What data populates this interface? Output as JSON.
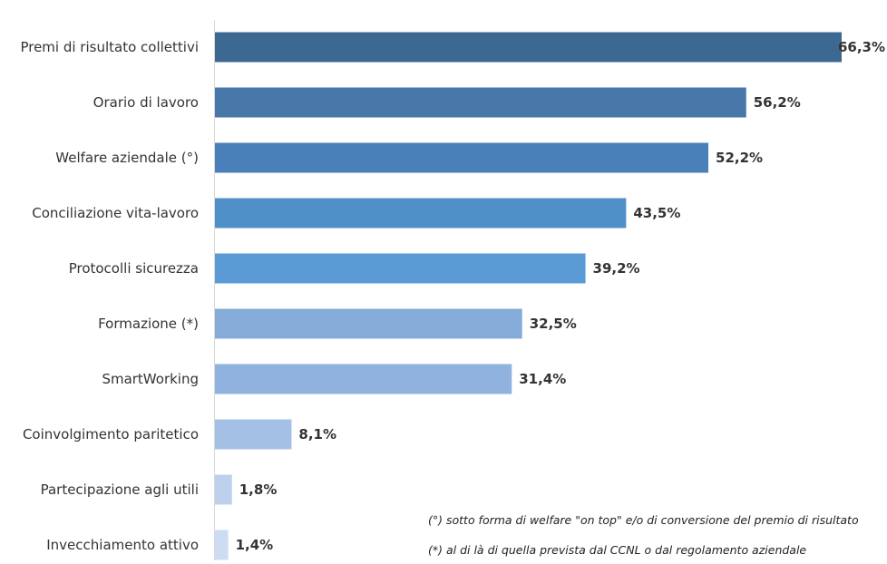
{
  "chart_data": {
    "type": "bar",
    "orientation": "horizontal",
    "title": "",
    "xlabel": "",
    "ylabel": "",
    "xlim": [
      0,
      66.3
    ],
    "grid": false,
    "legend": "none",
    "categories": [
      "Premi di risultato collettivi",
      "Orario di lavoro",
      "Welfare aziendale (°)",
      "Conciliazione vita-lavoro",
      "Protocolli sicurezza",
      "Formazione (*)",
      "SmartWorking",
      "Coinvolgimento paritetico",
      "Partecipazione agli utili",
      "Invecchiamento attivo"
    ],
    "values": [
      66.3,
      56.2,
      52.2,
      43.5,
      39.2,
      32.5,
      31.4,
      8.1,
      1.8,
      1.4
    ],
    "value_labels": [
      "66,3%",
      "56,2%",
      "52,2%",
      "43,5%",
      "39,2%",
      "32,5%",
      "31,4%",
      "8,1%",
      "1,8%",
      "1,4%"
    ],
    "colors": [
      "#3d6891",
      "#4677a8",
      "#4a80b9",
      "#5090c9",
      "#5b9bd5",
      "#85acd9",
      "#8fb2df",
      "#a5c0e5",
      "#bcd0ec",
      "#ccdcf2"
    ],
    "notes": [
      "(°) sotto forma di welfare \"on top\" e/o di conversione del premio di risultato",
      "(*) al di là di quella prevista dal CCNL o dal regolamento aziendale"
    ]
  }
}
